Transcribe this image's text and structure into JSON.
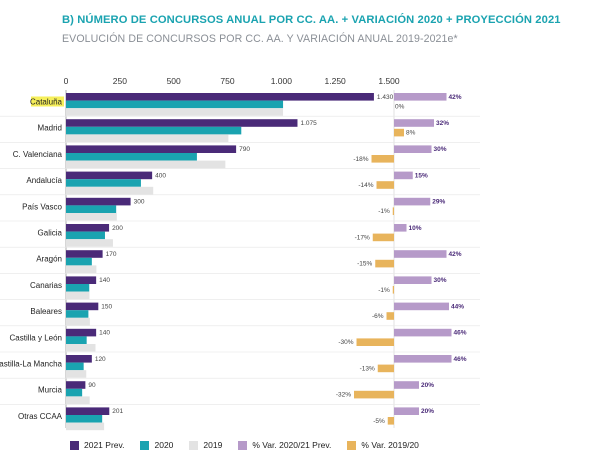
{
  "title": "B) NÚMERO DE CONCURSOS ANUAL POR CC. AA. + VARIACIÓN 2020 + PROYECCIÓN 2021",
  "subtitle": "EVOLUCIÓN DE CONCURSOS POR CC. AA. Y VARIACIÓN ANUAL 2019-2021e*",
  "colors": {
    "prev2021": "#4a2a78",
    "y2020": "#1aa3b0",
    "y2019": "#e3e3e3",
    "var2021": "#b69ac9",
    "var2019": "#e8b45c",
    "highlight": "#f6ef5a"
  },
  "legend": [
    {
      "label": "2021 Prev.",
      "color": "#4a2a78"
    },
    {
      "label": "2020",
      "color": "#1aa3b0"
    },
    {
      "label": "2019",
      "color": "#e3e3e3"
    },
    {
      "label": "% Var. 2020/21 Prev.",
      "color": "#b69ac9"
    },
    {
      "label": "% Var. 2019/20",
      "color": "#e8b45c"
    }
  ],
  "chart_data": {
    "type": "bar",
    "orientation": "horizontal",
    "xlim": [
      0,
      1500
    ],
    "xticks": [
      "0",
      "250",
      "500",
      "750",
      "1.000",
      "1.250",
      "1.500"
    ],
    "highlighted_category": "Cataluña",
    "categories": [
      "Cataluña",
      "Madrid",
      "C. Valenciana",
      "Andalucía",
      "País Vasco",
      "Galicia",
      "Aragón",
      "Canarias",
      "Baleares",
      "Castilla y León",
      "Castilla-La Mancha",
      "Murcia",
      "Otras CCAA"
    ],
    "series": [
      {
        "name": "2021 Prev.",
        "values": [
          1430,
          1075,
          790,
          400,
          300,
          200,
          170,
          140,
          150,
          140,
          120,
          90,
          201
        ]
      },
      {
        "name": "2020",
        "values": [
          1008,
          814,
          608,
          348,
          233,
          181,
          120,
          108,
          104,
          96,
          82,
          75,
          168
        ]
      },
      {
        "name": "2019",
        "values": [
          1008,
          754,
          740,
          405,
          236,
          218,
          141,
          109,
          111,
          137,
          94,
          110,
          177
        ]
      }
    ],
    "value_labels": [
      "1.430",
      "1.075",
      "790",
      "400",
      "300",
      "200",
      "170",
      "140",
      "150",
      "140",
      "120",
      "90",
      "201"
    ],
    "variation": {
      "series": [
        {
          "name": "% Var. 2020/21 Prev.",
          "values": [
            42,
            32,
            30,
            15,
            29,
            10,
            42,
            30,
            44,
            46,
            46,
            20,
            20
          ]
        },
        {
          "name": "% Var. 2019/20",
          "values": [
            0,
            8,
            -18,
            -14,
            -1,
            -17,
            -15,
            -1,
            -6,
            -30,
            -13,
            -32,
            -5
          ]
        }
      ],
      "labels_2021": [
        "42%",
        "32%",
        "30%",
        "15%",
        "29%",
        "10%",
        "42%",
        "30%",
        "44%",
        "46%",
        "46%",
        "20%",
        "20%"
      ],
      "labels_2019": [
        "0%",
        "8%",
        "-18%",
        "-14%",
        "-1%",
        "-17%",
        "-15%",
        "-1%",
        "-6%",
        "-30%",
        "-13%",
        "-32%",
        "-5%"
      ]
    }
  }
}
